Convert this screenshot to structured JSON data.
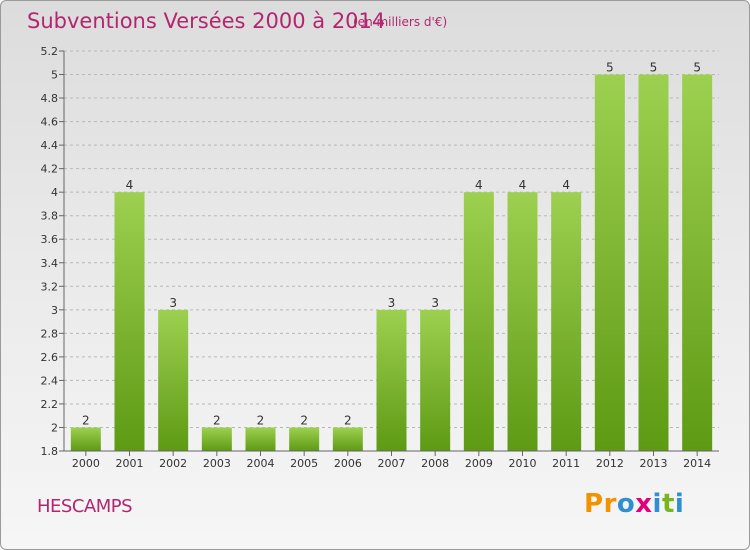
{
  "title": "Subventions Versées 2000 à 2014",
  "subtitle": "(en milliers d'€)",
  "place": "HESCAMPS",
  "logo": "Proxiti",
  "chart_data": {
    "type": "bar",
    "title": "Subventions Versées 2000 à 2014",
    "subtitle": "(en milliers d'€)",
    "categories": [
      "2000",
      "2001",
      "2002",
      "2003",
      "2004",
      "2005",
      "2006",
      "2007",
      "2008",
      "2009",
      "2010",
      "2011",
      "2012",
      "2013",
      "2014"
    ],
    "values": [
      2,
      4,
      3,
      2,
      2,
      2,
      2,
      3,
      3,
      4,
      4,
      4,
      5,
      5,
      5
    ],
    "data_labels": [
      "2",
      "4",
      "3",
      "2",
      "2",
      "2",
      "2",
      "3",
      "3",
      "4",
      "4",
      "4",
      "5",
      "5",
      "5"
    ],
    "yticks": [
      "1.8",
      "2",
      "2.2",
      "2.4",
      "2.6",
      "2.8",
      "3",
      "3.2",
      "3.4",
      "3.6",
      "3.8",
      "4",
      "4.2",
      "4.4",
      "4.6",
      "4.8",
      "5",
      "5.2"
    ],
    "ytick_values": [
      1.8,
      2,
      2.2,
      2.4,
      2.6,
      2.8,
      3,
      3.2,
      3.4,
      3.6,
      3.8,
      4,
      4.2,
      4.4,
      4.6,
      4.8,
      5,
      5.2
    ],
    "xlabel": "",
    "ylabel": "",
    "ylim": [
      1.8,
      5.2
    ],
    "grid": "horizontal dashed",
    "colors": {
      "bar_top": "#9dd050",
      "bar_bottom": "#5e9a14",
      "title": "#b3266f"
    }
  }
}
